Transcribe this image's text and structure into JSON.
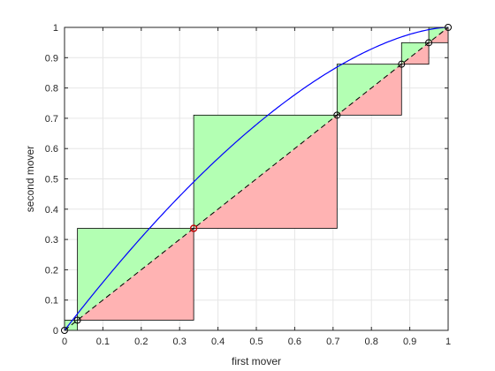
{
  "chart_data": {
    "type": "line",
    "title": "",
    "xlabel": "first mover",
    "ylabel": "second mover",
    "xlim": [
      0,
      1
    ],
    "ylim": [
      0,
      1
    ],
    "grid": true,
    "x_ticks": [
      "0",
      "0.1",
      "0.2",
      "0.3",
      "0.4",
      "0.5",
      "0.6",
      "0.7",
      "0.8",
      "0.9",
      "1"
    ],
    "y_ticks": [
      "0",
      "0.1",
      "0.2",
      "0.3",
      "0.4",
      "0.5",
      "0.6",
      "0.7",
      "0.8",
      "0.9",
      "1"
    ],
    "iterates": [
      0,
      0.0337,
      0.3367,
      0.7104,
      0.8785,
      0.9495,
      1.0
    ],
    "boxes": [
      {
        "x": [
          0,
          0.0337
        ],
        "y": [
          0,
          0.0337
        ],
        "fill": "green"
      },
      {
        "x": [
          0.0337,
          0.3367
        ],
        "y": [
          0.0337,
          0.3367
        ],
        "fill": "split"
      },
      {
        "x": [
          0.3367,
          0.7104
        ],
        "y": [
          0.3367,
          0.7104
        ],
        "fill": "split"
      },
      {
        "x": [
          0.7104,
          0.8785
        ],
        "y": [
          0.7104,
          0.8785
        ],
        "fill": "split"
      },
      {
        "x": [
          0.8785,
          0.9495
        ],
        "y": [
          0.8785,
          0.9495
        ],
        "fill": "split"
      },
      {
        "x": [
          0.9495,
          1.0
        ],
        "y": [
          0.9495,
          1.0
        ],
        "fill": "split"
      }
    ],
    "diagonal": {
      "x": [
        0,
        1
      ],
      "y": [
        0,
        1
      ],
      "style": "dashed"
    },
    "curve": {
      "function": "y = 1 - (1 - x)^1.64",
      "color": "#0000ff"
    },
    "highlight_point": {
      "x": 0.3367,
      "y": 0.3367,
      "color": "#cc0000"
    },
    "colors": {
      "green_fill": "#b3ffb3",
      "red_fill": "#ffb3b3",
      "curve": "#0000ff",
      "grid": "#e6e6e6",
      "axis": "#262626",
      "box_edge": "#000000"
    }
  }
}
